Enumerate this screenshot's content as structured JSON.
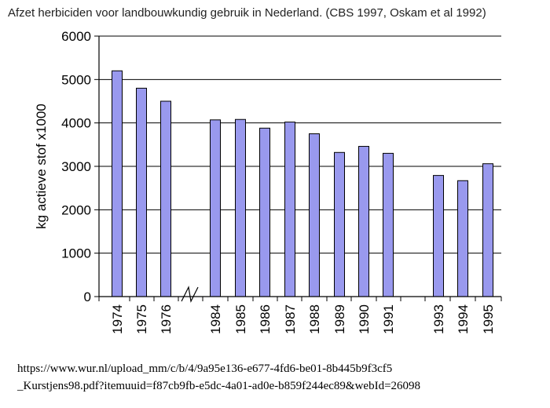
{
  "chart_data": {
    "type": "bar",
    "title": "Afzet herbiciden voor landbouwkundig gebruik in Nederland. (CBS 1997, Oskam et al 1992)",
    "ylabel": "kg actieve stof x1000",
    "xlabel": "",
    "ylim": [
      0,
      6000
    ],
    "yticks": [
      0,
      1000,
      2000,
      3000,
      4000,
      5000,
      6000
    ],
    "grid": true,
    "axis_break_after": "1976",
    "categories": [
      "1974",
      "1975",
      "1976",
      "1984",
      "1985",
      "1986",
      "1987",
      "1988",
      "1989",
      "1990",
      "1991",
      "1993",
      "1994",
      "1995"
    ],
    "values": [
      5200,
      4800,
      4500,
      4070,
      4080,
      3880,
      4020,
      3750,
      3320,
      3460,
      3300,
      2790,
      2670,
      3060
    ],
    "bar_color": "#9999ee",
    "bar_stroke": "#000000"
  },
  "source": {
    "line1": "https://www.wur.nl/upload_mm/c/b/4/9a95e136-e677-4fd6-be01-8b445b9f3cf5",
    "line2": "_Kurstjens98.pdf?itemuuid=f87cb9fb-e5dc-4a01-ad0e-b859f244ec89&webId=26098"
  }
}
